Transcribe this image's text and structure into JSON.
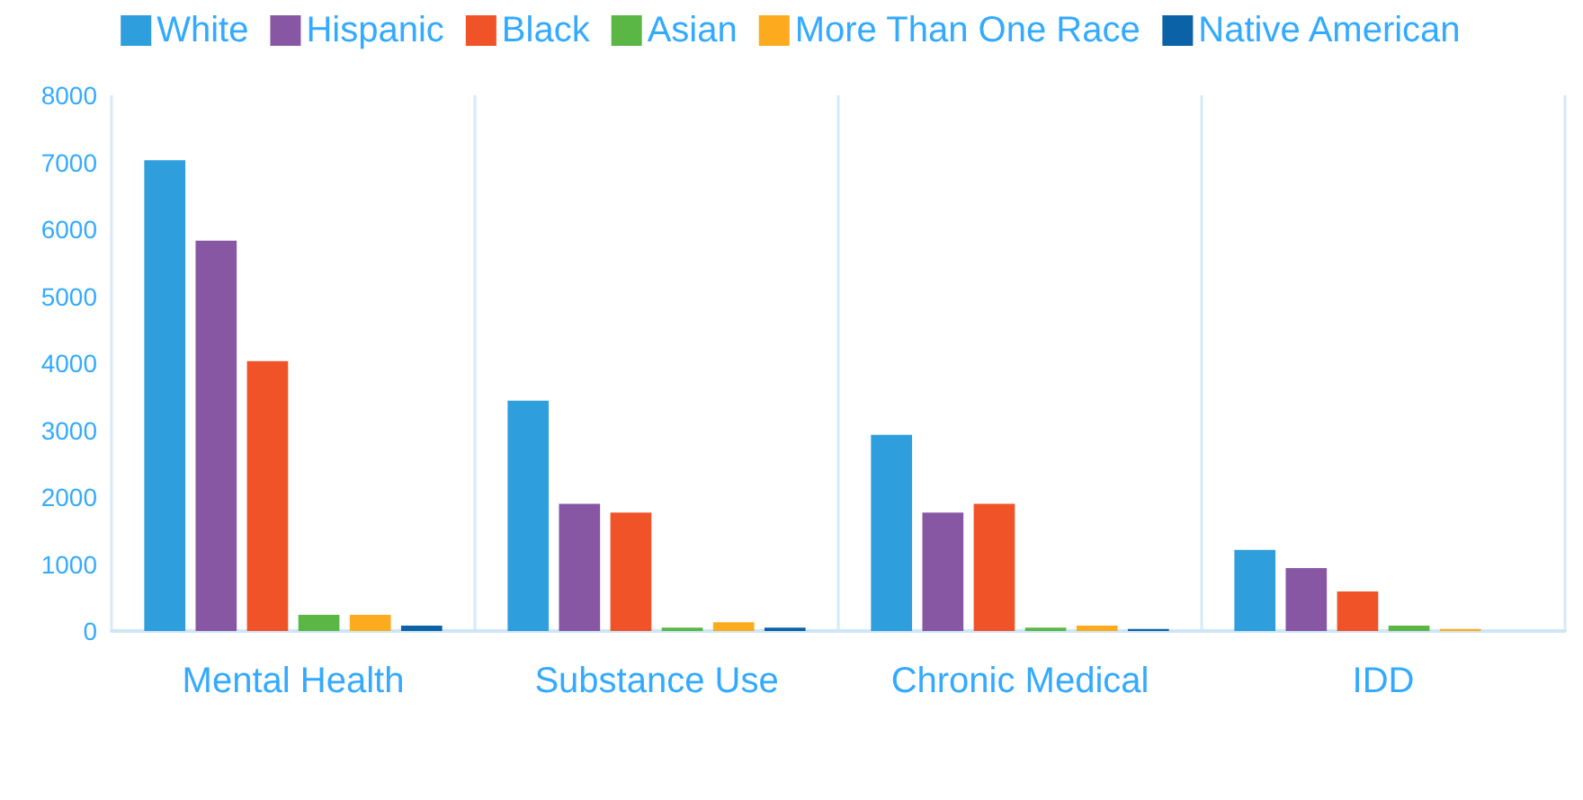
{
  "chart_data": {
    "type": "bar",
    "categories": [
      "Mental Health",
      "Substance Use",
      "Chronic Medical",
      "IDD"
    ],
    "series": [
      {
        "name": "White",
        "color": "#2e9fdc",
        "values": [
          7030,
          3440,
          2930,
          1210
        ]
      },
      {
        "name": "Hispanic",
        "color": "#8757a3",
        "values": [
          5830,
          1900,
          1770,
          940
        ]
      },
      {
        "name": "Black",
        "color": "#f05328",
        "values": [
          4030,
          1770,
          1900,
          590
        ]
      },
      {
        "name": "Asian",
        "color": "#5ab645",
        "values": [
          240,
          50,
          50,
          80
        ]
      },
      {
        "name": "More Than One Race",
        "color": "#fdab1e",
        "values": [
          240,
          130,
          80,
          30
        ]
      },
      {
        "name": "Native American",
        "color": "#0c62a6",
        "values": [
          80,
          50,
          30,
          0
        ]
      }
    ],
    "ylim": [
      0,
      8000
    ],
    "yticks": [
      0,
      1000,
      2000,
      3000,
      4000,
      5000,
      6000,
      7000,
      8000
    ],
    "grid": "x",
    "legend": "top"
  }
}
